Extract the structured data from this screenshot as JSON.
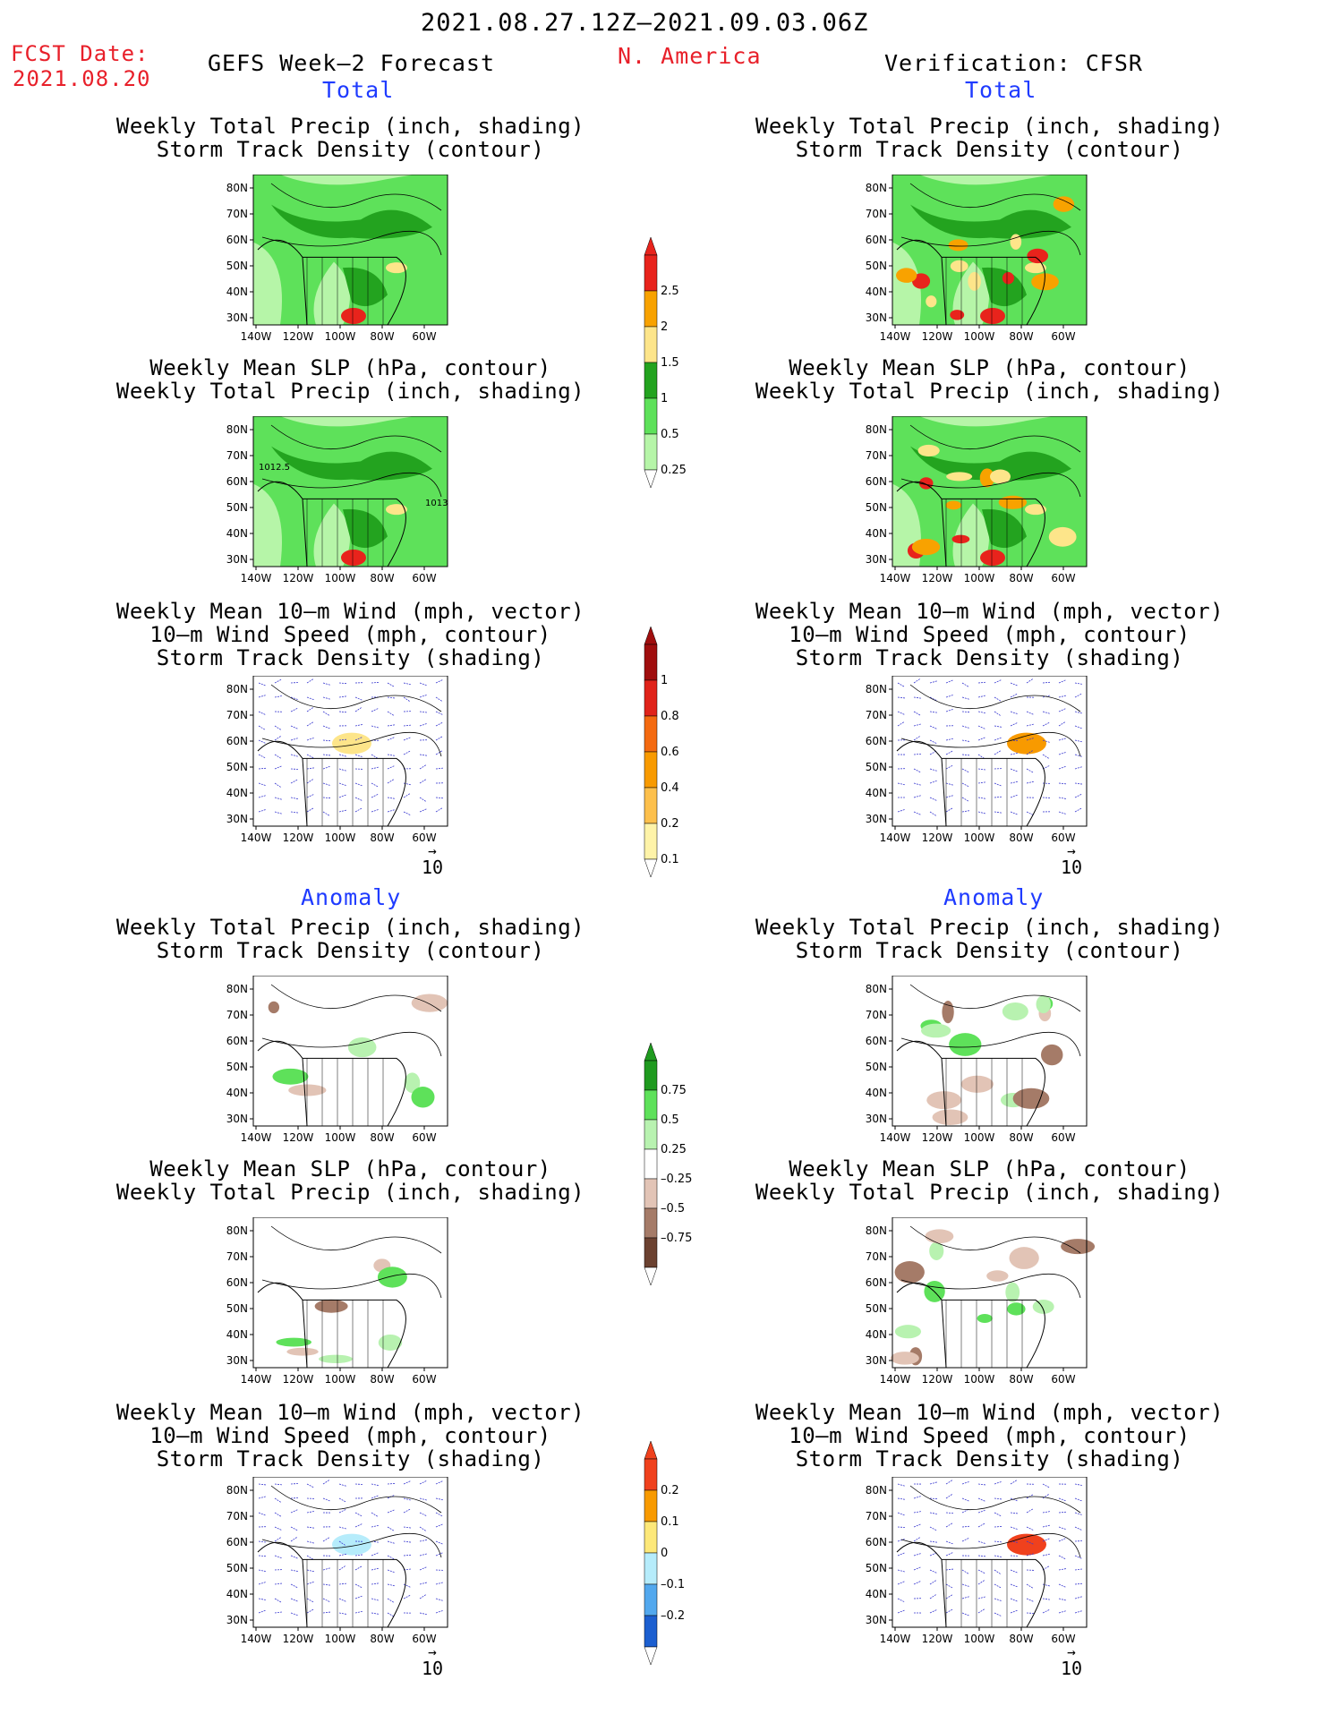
{
  "header": {
    "period": "2021.08.27.12Z–2021.09.03.06Z",
    "fcst_label": "FCST Date:",
    "fcst_date": "2021.08.20",
    "model": "GEFS Week–2 Forecast",
    "region": "N. America",
    "verification": "Verification: CFSR"
  },
  "sections": {
    "total": "Total",
    "anomaly": "Anomaly"
  },
  "titles": {
    "precip_storm": [
      "Weekly Total Precip (inch, shading)",
      "Storm Track Density (contour)"
    ],
    "slp_precip": [
      "Weekly Mean SLP (hPa, contour)",
      "Weekly Total Precip (inch, shading)"
    ],
    "wind_storm": [
      "Weekly Mean 10–m Wind (mph, vector)",
      "10–m Wind Speed (mph, contour)",
      "Storm Track Density (shading)"
    ]
  },
  "axes": {
    "lat": [
      "80N",
      "70N",
      "60N",
      "50N",
      "40N",
      "30N"
    ],
    "lon": [
      "140W",
      "120W",
      "100W",
      "80W",
      "60W"
    ]
  },
  "contour_labels": {
    "slp_a": "1012.5",
    "slp_b": "1013"
  },
  "vector_ref": "10",
  "colorbars": {
    "precip_total": {
      "levels": [
        "2.5",
        "2",
        "1.5",
        "1",
        "0.5",
        "0.25"
      ],
      "colors": [
        "#e8231c",
        "#f8a200",
        "#fde58a",
        "#23a31f",
        "#5ee15a",
        "#b6f5a8"
      ]
    },
    "storm_total": {
      "levels": [
        "1",
        "0.8",
        "0.6",
        "0.4",
        "0.2",
        "0.1"
      ],
      "colors": [
        "#a00e0e",
        "#e0231a",
        "#f46a10",
        "#f89a00",
        "#fdc04c",
        "#fef3a8"
      ]
    },
    "precip_anom": {
      "levels": [
        "0.75",
        "0.5",
        "0.25",
        "–0.25",
        "–0.5",
        "–0.75"
      ],
      "colors": [
        "#1f9a1f",
        "#5ee15a",
        "#b8f2b0",
        "#ffffff",
        "#e2c4b6",
        "#a57b68",
        "#6b4130"
      ]
    },
    "storm_anom": {
      "levels": [
        "0.2",
        "0.1",
        "0",
        "–0.1",
        "–0.2"
      ],
      "colors": [
        "#f0411d",
        "#f89a00",
        "#fde879",
        "#b6ecfb",
        "#52a8ee",
        "#1c5fd0"
      ]
    }
  }
}
